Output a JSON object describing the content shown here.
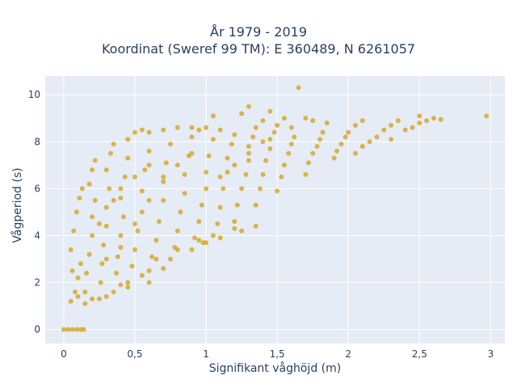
{
  "chart_data": {
    "type": "scatter",
    "title_line1": "År 1979 - 2019",
    "title_line2": "Koordinat (Sweref 99 TM): E 360489, N 6261057",
    "xlabel": "Signifikant våghöjd (m)",
    "ylabel": "Vågperiod (s)",
    "xlim": [
      -0.13,
      3.1
    ],
    "ylim": [
      -0.6,
      10.8
    ],
    "xticks": [
      0,
      0.5,
      1,
      1.5,
      2,
      2.5,
      3
    ],
    "xtick_labels": [
      "0",
      "0,5",
      "1",
      "1,5",
      "2",
      "2,5",
      "3"
    ],
    "yticks": [
      0,
      2,
      4,
      6,
      8,
      10
    ],
    "ytick_labels": [
      "0",
      "2",
      "4",
      "6",
      "8",
      "10"
    ],
    "grid": true,
    "marker_color": "#d4a520",
    "plot_bg": "#e5ecf6",
    "points": [
      [
        0.0,
        0.0
      ],
      [
        0.03,
        0.0
      ],
      [
        0.06,
        0.0
      ],
      [
        0.09,
        0.0
      ],
      [
        0.12,
        0.0
      ],
      [
        0.14,
        0.0
      ],
      [
        0.05,
        1.2
      ],
      [
        0.08,
        1.6
      ],
      [
        0.1,
        2.2
      ],
      [
        0.12,
        2.8
      ],
      [
        0.05,
        3.4
      ],
      [
        0.07,
        4.2
      ],
      [
        0.09,
        5.0
      ],
      [
        0.11,
        5.6
      ],
      [
        0.13,
        6.0
      ],
      [
        0.06,
        2.5
      ],
      [
        0.15,
        1.1
      ],
      [
        0.15,
        1.6
      ],
      [
        0.16,
        2.4
      ],
      [
        0.18,
        3.2
      ],
      [
        0.2,
        4.0
      ],
      [
        0.2,
        4.8
      ],
      [
        0.22,
        5.5
      ],
      [
        0.18,
        6.2
      ],
      [
        0.2,
        6.8
      ],
      [
        0.22,
        7.2
      ],
      [
        0.25,
        1.3
      ],
      [
        0.26,
        2.0
      ],
      [
        0.27,
        2.8
      ],
      [
        0.28,
        3.6
      ],
      [
        0.3,
        4.4
      ],
      [
        0.3,
        5.2
      ],
      [
        0.32,
        6.0
      ],
      [
        0.3,
        6.8
      ],
      [
        0.33,
        7.5
      ],
      [
        0.35,
        7.9
      ],
      [
        0.35,
        1.6
      ],
      [
        0.37,
        2.4
      ],
      [
        0.38,
        3.1
      ],
      [
        0.4,
        4.0
      ],
      [
        0.42,
        4.8
      ],
      [
        0.4,
        5.6
      ],
      [
        0.43,
        6.5
      ],
      [
        0.45,
        7.3
      ],
      [
        0.45,
        8.1
      ],
      [
        0.5,
        8.4
      ],
      [
        0.45,
        2.0
      ],
      [
        0.48,
        2.7
      ],
      [
        0.5,
        3.4
      ],
      [
        0.52,
        4.2
      ],
      [
        0.55,
        5.0
      ],
      [
        0.55,
        5.9
      ],
      [
        0.57,
        6.8
      ],
      [
        0.6,
        7.6
      ],
      [
        0.6,
        8.4
      ],
      [
        0.55,
        8.5
      ],
      [
        0.6,
        2.5
      ],
      [
        0.62,
        3.1
      ],
      [
        0.65,
        3.8
      ],
      [
        0.67,
        4.6
      ],
      [
        0.7,
        5.5
      ],
      [
        0.7,
        6.3
      ],
      [
        0.72,
        7.1
      ],
      [
        0.75,
        7.9
      ],
      [
        0.7,
        8.5
      ],
      [
        0.8,
        8.6
      ],
      [
        0.75,
        3.0
      ],
      [
        0.78,
        3.5
      ],
      [
        0.8,
        4.2
      ],
      [
        0.82,
        5.0
      ],
      [
        0.85,
        5.8
      ],
      [
        0.85,
        6.6
      ],
      [
        0.88,
        7.4
      ],
      [
        0.9,
        8.2
      ],
      [
        0.9,
        8.6
      ],
      [
        0.95,
        8.5
      ],
      [
        0.9,
        3.4
      ],
      [
        0.92,
        3.9
      ],
      [
        0.95,
        4.6
      ],
      [
        0.97,
        5.3
      ],
      [
        1.0,
        6.0
      ],
      [
        1.0,
        6.7
      ],
      [
        1.02,
        7.4
      ],
      [
        1.05,
        8.1
      ],
      [
        1.0,
        8.6
      ],
      [
        0.98,
        3.7
      ],
      [
        1.05,
        4.0
      ],
      [
        1.08,
        4.5
      ],
      [
        1.1,
        5.2
      ],
      [
        1.12,
        6.0
      ],
      [
        1.15,
        6.7
      ],
      [
        1.15,
        7.3
      ],
      [
        1.18,
        7.9
      ],
      [
        1.2,
        8.3
      ],
      [
        1.1,
        8.5
      ],
      [
        1.05,
        9.1
      ],
      [
        1.2,
        4.6
      ],
      [
        1.22,
        5.3
      ],
      [
        1.25,
        6.0
      ],
      [
        1.28,
        6.6
      ],
      [
        1.3,
        7.2
      ],
      [
        1.3,
        7.8
      ],
      [
        1.33,
        8.2
      ],
      [
        1.35,
        8.6
      ],
      [
        1.25,
        9.2
      ],
      [
        1.3,
        9.5
      ],
      [
        1.35,
        5.3
      ],
      [
        1.38,
        6.0
      ],
      [
        1.4,
        6.6
      ],
      [
        1.42,
        7.2
      ],
      [
        1.45,
        7.7
      ],
      [
        1.45,
        8.1
      ],
      [
        1.48,
        8.4
      ],
      [
        1.5,
        8.7
      ],
      [
        1.45,
        9.3
      ],
      [
        1.4,
        8.9
      ],
      [
        1.5,
        5.9
      ],
      [
        1.53,
        6.5
      ],
      [
        1.55,
        7.0
      ],
      [
        1.58,
        7.5
      ],
      [
        1.6,
        7.9
      ],
      [
        1.62,
        8.2
      ],
      [
        1.6,
        8.6
      ],
      [
        1.65,
        10.3
      ],
      [
        1.7,
        9.0
      ],
      [
        1.55,
        9.0
      ],
      [
        1.7,
        6.6
      ],
      [
        1.72,
        7.1
      ],
      [
        1.75,
        7.5
      ],
      [
        1.78,
        7.8
      ],
      [
        1.8,
        8.1
      ],
      [
        1.82,
        8.4
      ],
      [
        1.85,
        8.8
      ],
      [
        1.75,
        8.9
      ],
      [
        1.9,
        7.3
      ],
      [
        1.92,
        7.6
      ],
      [
        1.95,
        7.9
      ],
      [
        1.98,
        8.2
      ],
      [
        2.0,
        8.4
      ],
      [
        2.05,
        8.7
      ],
      [
        2.1,
        8.9
      ],
      [
        2.05,
        7.5
      ],
      [
        2.1,
        7.8
      ],
      [
        2.15,
        8.0
      ],
      [
        2.2,
        8.2
      ],
      [
        2.25,
        8.5
      ],
      [
        2.3,
        8.7
      ],
      [
        2.35,
        8.9
      ],
      [
        2.4,
        8.5
      ],
      [
        2.3,
        8.1
      ],
      [
        2.45,
        8.6
      ],
      [
        2.5,
        8.8
      ],
      [
        2.55,
        8.9
      ],
      [
        2.6,
        9.0
      ],
      [
        2.5,
        9.1
      ],
      [
        2.65,
        8.95
      ],
      [
        2.97,
        9.1
      ],
      [
        1.0,
        3.7
      ],
      [
        1.1,
        3.9
      ],
      [
        1.2,
        4.3
      ],
      [
        0.95,
        3.8
      ],
      [
        1.25,
        4.2
      ],
      [
        1.35,
        4.4
      ],
      [
        0.65,
        3.0
      ],
      [
        0.8,
        3.4
      ],
      [
        0.4,
        3.5
      ],
      [
        0.5,
        4.5
      ],
      [
        0.6,
        5.5
      ],
      [
        0.7,
        6.5
      ],
      [
        0.8,
        7.0
      ],
      [
        0.9,
        7.5
      ],
      [
        0.3,
        3.0
      ],
      [
        0.25,
        4.5
      ],
      [
        1.1,
        6.5
      ],
      [
        1.2,
        7.0
      ],
      [
        1.3,
        7.5
      ],
      [
        1.4,
        8.0
      ],
      [
        0.6,
        7.0
      ],
      [
        0.5,
        6.5
      ],
      [
        0.4,
        6.0
      ],
      [
        0.35,
        5.5
      ],
      [
        0.45,
        1.8
      ],
      [
        0.4,
        1.9
      ],
      [
        0.3,
        1.4
      ],
      [
        0.2,
        1.3
      ],
      [
        0.1,
        1.4
      ],
      [
        0.6,
        2.0
      ],
      [
        0.7,
        2.6
      ],
      [
        0.55,
        2.3
      ]
    ]
  }
}
